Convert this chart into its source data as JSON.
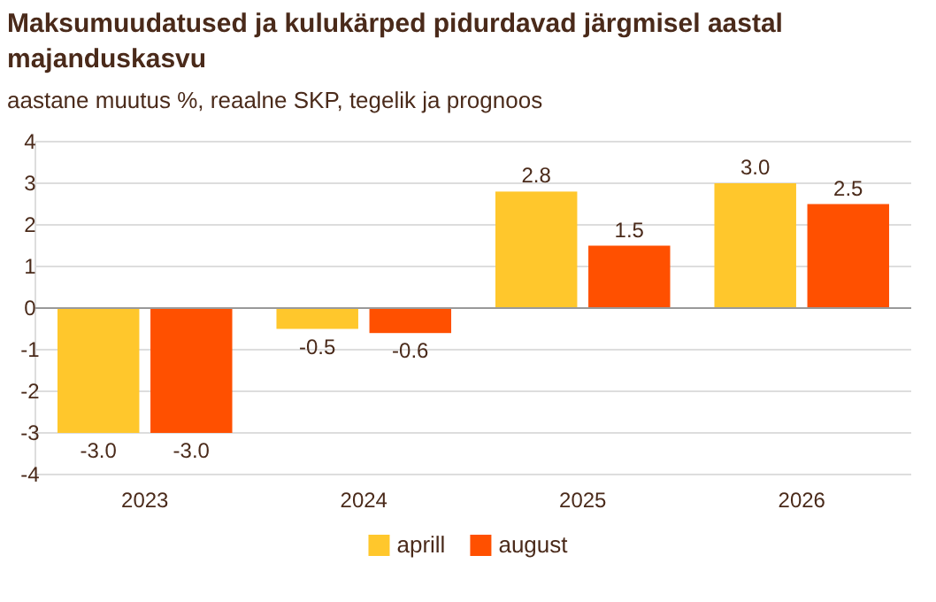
{
  "chart_data": {
    "type": "bar",
    "title": "Maksumuudatused ja kulukärped pidurdavad järgmisel aastal majanduskasvu",
    "subtitle": "aastane muutus %, reaalne SKP, tegelik ja prognoos",
    "categories": [
      "2023",
      "2024",
      "2025",
      "2026"
    ],
    "series": [
      {
        "name": "aprill",
        "color": "#ffc72c",
        "values": [
          -3.0,
          -0.5,
          2.8,
          3.0
        ]
      },
      {
        "name": "august",
        "color": "#ff5000",
        "values": [
          -3.0,
          -0.6,
          1.5,
          2.5
        ]
      }
    ],
    "value_labels": [
      [
        "-3.0",
        "-0.5",
        "2.8",
        "3.0"
      ],
      [
        "-3.0",
        "-0.6",
        "1.5",
        "2.5"
      ]
    ],
    "ylim": [
      -4,
      4
    ],
    "yticks": [
      -4,
      -3,
      -2,
      -1,
      0,
      1,
      2,
      3,
      4
    ],
    "grid": "y",
    "legend": "bottom"
  }
}
